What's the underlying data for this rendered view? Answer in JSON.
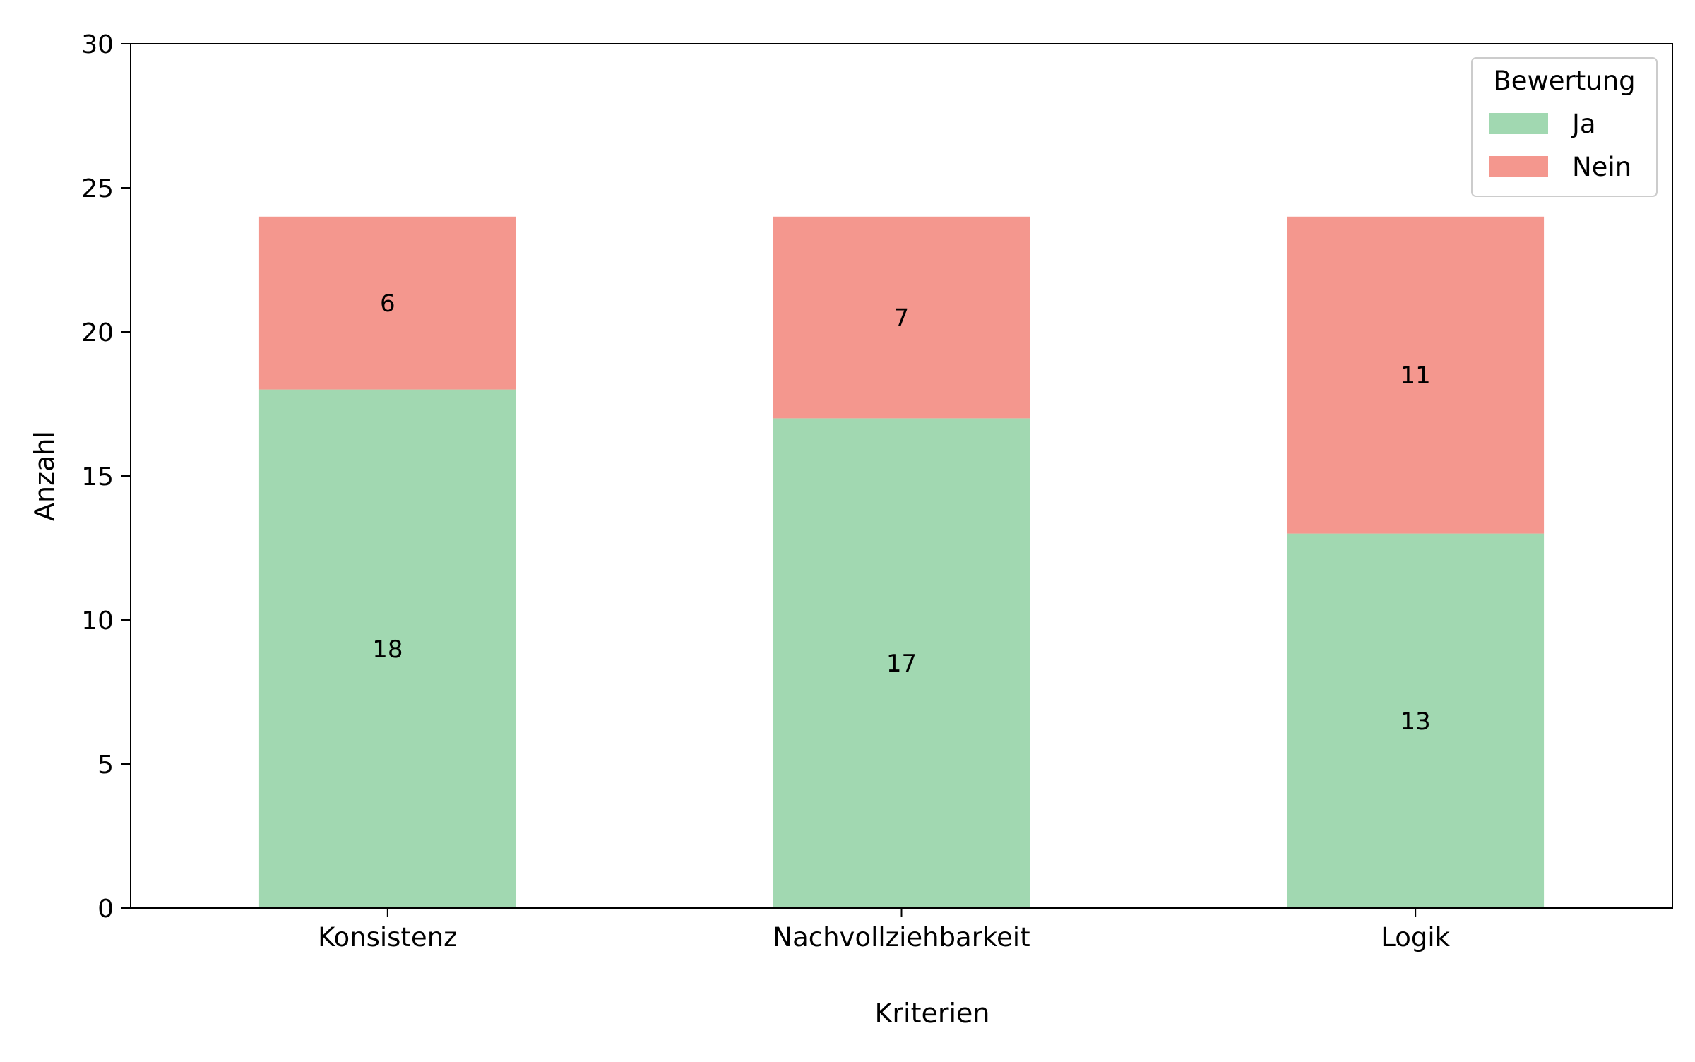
{
  "chart_data": {
    "type": "bar",
    "stacked": true,
    "categories": [
      "Konsistenz",
      "Nachvollziehbarkeit",
      "Logik"
    ],
    "series": [
      {
        "name": "Ja",
        "values": [
          18,
          17,
          13
        ],
        "color": "#a1d8b1"
      },
      {
        "name": "Nein",
        "values": [
          6,
          7,
          11
        ],
        "color": "#f4978e"
      }
    ],
    "xlabel": "Kriterien",
    "ylabel": "Anzahl",
    "ylim": [
      0,
      30
    ],
    "yticks": [
      0,
      5,
      10,
      15,
      20,
      25,
      30
    ],
    "legend": {
      "title": "Bewertung",
      "position": "top-right"
    },
    "grid": false,
    "data_labels": true
  }
}
